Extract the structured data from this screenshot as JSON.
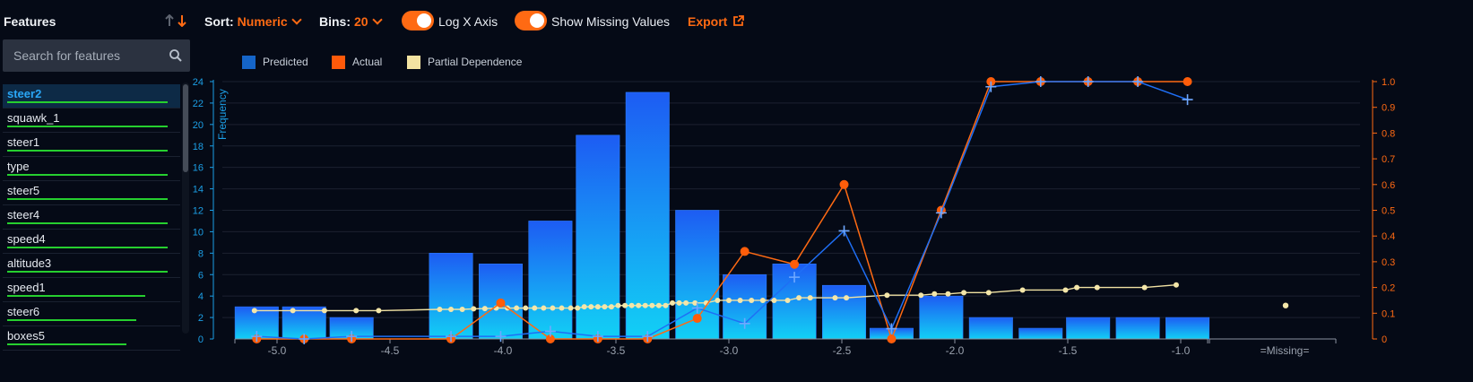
{
  "sidebar": {
    "title": "Features",
    "search_placeholder": "Search for features",
    "items": [
      {
        "label": "steer2",
        "bar": 0.94,
        "active": true
      },
      {
        "label": "squawk_1",
        "bar": 0.94
      },
      {
        "label": "steer1",
        "bar": 0.94
      },
      {
        "label": "type",
        "bar": 0.94
      },
      {
        "label": "steer5",
        "bar": 0.94
      },
      {
        "label": "steer4",
        "bar": 0.94
      },
      {
        "label": "speed4",
        "bar": 0.94
      },
      {
        "label": "altitude3",
        "bar": 0.94
      },
      {
        "label": "speed1",
        "bar": 0.81
      },
      {
        "label": "steer6",
        "bar": 0.76
      },
      {
        "label": "boxes5",
        "bar": 0.7
      }
    ]
  },
  "toolbar": {
    "sort_label": "Sort:",
    "sort_value": "Numeric",
    "bins_label": "Bins:",
    "bins_value": "20",
    "log_x_label": "Log X Axis",
    "log_x_on": true,
    "show_missing_label": "Show Missing Values",
    "show_missing_on": true,
    "export_label": "Export"
  },
  "legend": {
    "predicted": "Predicted",
    "actual": "Actual",
    "partial": "Partial Dependence"
  },
  "colors": {
    "accent": "#ff6a13",
    "predicted": "#1f78ff",
    "actual": "#ff6a13",
    "partial": "#f5e6a8",
    "bar_top": "#1d5cf3",
    "bar_bottom": "#12d0f5",
    "left_axis": "#1c9fe6",
    "right_axis": "#ff6a13",
    "feature_bar": "#26cf2f"
  },
  "icons": {
    "search": "search-icon",
    "sort_up": "arrow-up-icon",
    "sort_down": "arrow-down-icon",
    "export": "external-link-icon"
  },
  "chart_data": {
    "type": "bar",
    "xlabel": "",
    "ylabel": "Frequency",
    "y2label": "",
    "xlim": [
      -5.2,
      -0.13
    ],
    "ylim": [
      0,
      24
    ],
    "y2lim": [
      0,
      1
    ],
    "xticks": [
      -5.0,
      -4.5,
      -4.0,
      -3.5,
      -3.0,
      -2.5,
      -2.0,
      -1.5,
      -1.0
    ],
    "xtick_labels": [
      "-5.0",
      "-4.5",
      "-4.0",
      "-3.5",
      "-3.0",
      "-2.5",
      "-2.0",
      "-1.5",
      "-1.0"
    ],
    "missing_label": "=Missing=",
    "yticks": [
      0,
      2,
      4,
      6,
      8,
      10,
      12,
      14,
      16,
      18,
      20,
      22,
      24
    ],
    "y2ticks": [
      0,
      0.1,
      0.2,
      0.3,
      0.4,
      0.5,
      0.6,
      0.7,
      0.8,
      0.9,
      1.0
    ],
    "y2tick_labels": [
      "0",
      "0.1",
      "0.2",
      "0.3",
      "0.4",
      "0.5",
      "0.6",
      "0.7",
      "0.8",
      "0.9",
      "1.0"
    ],
    "bins": [
      {
        "x0": -5.19,
        "x1": -4.99,
        "count": 3
      },
      {
        "x0": -4.98,
        "x1": -4.78,
        "count": 3
      },
      {
        "x0": -4.77,
        "x1": -4.57,
        "count": 2
      },
      {
        "x0": -4.33,
        "x1": -4.13,
        "count": 8
      },
      {
        "x0": -4.11,
        "x1": -3.91,
        "count": 7
      },
      {
        "x0": -3.89,
        "x1": -3.69,
        "count": 11
      },
      {
        "x0": -3.68,
        "x1": -3.48,
        "count": 19
      },
      {
        "x0": -3.46,
        "x1": -3.26,
        "count": 23
      },
      {
        "x0": -3.24,
        "x1": -3.04,
        "count": 12
      },
      {
        "x0": -3.03,
        "x1": -2.83,
        "count": 6
      },
      {
        "x0": -2.81,
        "x1": -2.61,
        "count": 7
      },
      {
        "x0": -2.59,
        "x1": -2.39,
        "count": 5
      },
      {
        "x0": -2.38,
        "x1": -2.18,
        "count": 1
      },
      {
        "x0": -2.16,
        "x1": -1.96,
        "count": 4
      },
      {
        "x0": -1.94,
        "x1": -1.74,
        "count": 2
      },
      {
        "x0": -1.72,
        "x1": -1.52,
        "count": 1
      },
      {
        "x0": -1.51,
        "x1": -1.31,
        "count": 2
      },
      {
        "x0": -1.29,
        "x1": -1.09,
        "count": 2
      },
      {
        "x0": -1.07,
        "x1": -0.87,
        "count": 2
      }
    ],
    "series": [
      {
        "name": "Predicted",
        "x": [
          -5.09,
          -4.88,
          -4.67,
          -4.23,
          -4.01,
          -3.79,
          -3.58,
          -3.36,
          -3.14,
          -2.93,
          -2.71,
          -2.49,
          -2.28,
          -2.06,
          -1.84,
          -1.62,
          -1.41,
          -1.19,
          -0.97
        ],
        "y": [
          0.01,
          0.0,
          0.01,
          0.01,
          0.01,
          0.03,
          0.01,
          0.01,
          0.12,
          0.06,
          0.24,
          0.42,
          0.04,
          0.49,
          0.98,
          1.0,
          1.0,
          1.0,
          0.93
        ]
      },
      {
        "name": "Actual",
        "x": [
          -5.09,
          -4.88,
          -4.67,
          -4.23,
          -4.01,
          -3.79,
          -3.58,
          -3.36,
          -3.14,
          -2.93,
          -2.71,
          -2.49,
          -2.28,
          -2.06,
          -1.84,
          -1.62,
          -1.41,
          -1.19,
          -0.97
        ],
        "y": [
          0.0,
          0.0,
          0.0,
          0.0,
          0.14,
          0.0,
          0.0,
          0.0,
          0.08,
          0.34,
          0.29,
          0.6,
          0.0,
          0.5,
          1.0,
          1.0,
          1.0,
          1.0,
          1.0
        ]
      },
      {
        "name": "Partial Dependence",
        "x": [
          -5.1,
          -4.93,
          -4.79,
          -4.65,
          -4.55,
          -4.28,
          -4.23,
          -4.18,
          -4.13,
          -4.08,
          -4.03,
          -3.98,
          -3.94,
          -3.9,
          -3.86,
          -3.82,
          -3.78,
          -3.74,
          -3.7,
          -3.67,
          -3.64,
          -3.61,
          -3.58,
          -3.55,
          -3.52,
          -3.49,
          -3.46,
          -3.43,
          -3.4,
          -3.37,
          -3.34,
          -3.31,
          -3.28,
          -3.25,
          -3.22,
          -3.19,
          -3.15,
          -3.1,
          -3.05,
          -3.0,
          -2.95,
          -2.9,
          -2.85,
          -2.8,
          -2.74,
          -2.69,
          -2.64,
          -2.53,
          -2.48,
          -2.3,
          -2.15,
          -2.09,
          -2.03,
          -1.96,
          -1.85,
          -1.7,
          -1.51,
          -1.46,
          -1.37,
          -1.16,
          -1.02
        ],
        "y": [
          0.11,
          0.11,
          0.11,
          0.11,
          0.11,
          0.115,
          0.115,
          0.115,
          0.117,
          0.118,
          0.12,
          0.12,
          0.12,
          0.12,
          0.12,
          0.12,
          0.12,
          0.12,
          0.12,
          0.12,
          0.125,
          0.125,
          0.125,
          0.125,
          0.125,
          0.13,
          0.13,
          0.13,
          0.13,
          0.13,
          0.13,
          0.13,
          0.13,
          0.14,
          0.14,
          0.14,
          0.14,
          0.14,
          0.15,
          0.15,
          0.15,
          0.15,
          0.15,
          0.15,
          0.15,
          0.16,
          0.16,
          0.16,
          0.16,
          0.17,
          0.17,
          0.175,
          0.175,
          0.18,
          0.18,
          0.19,
          0.19,
          0.2,
          0.2,
          0.2,
          0.21
        ]
      }
    ],
    "missing_partial_y": 0.13
  }
}
